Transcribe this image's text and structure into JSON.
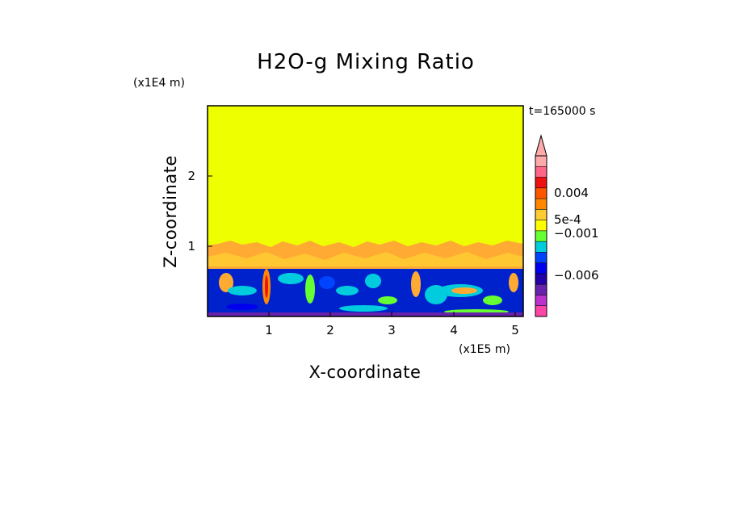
{
  "chart_data": {
    "type": "heatmap",
    "title": "H2O-g Mixing Ratio",
    "time_label": "t=165000 s",
    "xlabel": "X-coordinate",
    "ylabel": "Z-coordinate",
    "x_scale_label": "(x1E5 m)",
    "y_scale_label": "(x1E4 m)",
    "xlim": [
      0,
      5.1
    ],
    "ylim": [
      0,
      3.0
    ],
    "x_ticks": [
      "1",
      "2",
      "3",
      "4",
      "5"
    ],
    "y_ticks": [
      "1",
      "2"
    ],
    "layers": [
      {
        "from_z": 1.05,
        "to_z": 3.0,
        "color": "#eeff00"
      },
      {
        "from_z": 0.72,
        "to_z": 1.05,
        "color": "#ffaa33"
      },
      {
        "from_z": 0.0,
        "to_z": 0.72,
        "color": "#0022cc"
      }
    ],
    "colorbar": {
      "labels": [
        "0.004",
        "5e-4",
        "−0.001",
        "−0.006"
      ],
      "colors": [
        "#ff44aa",
        "#bb33cc",
        "#6622aa",
        "#2200aa",
        "#0000ee",
        "#0044ff",
        "#00ccdd",
        "#66ff33",
        "#ffff00",
        "#ffcc33",
        "#ff8800",
        "#ff5500",
        "#ee1111",
        "#ff6688",
        "#ffaaaa"
      ]
    }
  }
}
